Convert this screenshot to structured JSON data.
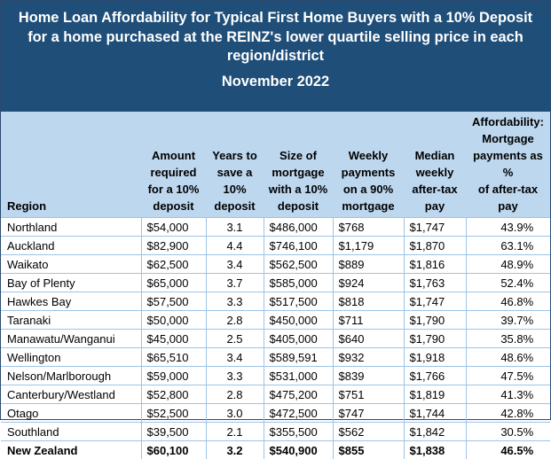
{
  "title": {
    "lines": [
      "Home Loan Affordability for Typical First Home Buyers with a 10% Deposit",
      "for a home purchased at the REINZ's lower quartile selling price in each",
      "region/district"
    ],
    "subtitle": "November 2022"
  },
  "headers": {
    "region": "Region",
    "amount": [
      "Amount",
      "required",
      "for a 10%",
      "deposit"
    ],
    "years": [
      "Years to",
      "save a",
      "10%",
      "deposit"
    ],
    "mortgage": [
      "Size of",
      "mortgage",
      "with a 10%",
      "deposit"
    ],
    "weekly": [
      "Weekly",
      "payments",
      "on a 90%",
      "mortgage"
    ],
    "pay": [
      "Median",
      "weekly",
      "after-tax",
      "pay"
    ],
    "afford": [
      "Affordability:",
      "Mortgage",
      "payments as %",
      "of after-tax pay"
    ]
  },
  "rows": [
    {
      "region": "Northland",
      "amount": "$54,000",
      "years": "3.1",
      "mortgage": "$486,000",
      "weekly": "$768",
      "pay": "$1,747",
      "afford": "43.9%"
    },
    {
      "region": "Auckland",
      "amount": "$82,900",
      "years": "4.4",
      "mortgage": "$746,100",
      "weekly": "$1,179",
      "pay": "$1,870",
      "afford": "63.1%"
    },
    {
      "region": "Waikato",
      "amount": "$62,500",
      "years": "3.4",
      "mortgage": "$562,500",
      "weekly": "$889",
      "pay": "$1,816",
      "afford": "48.9%"
    },
    {
      "region": "Bay of Plenty",
      "amount": "$65,000",
      "years": "3.7",
      "mortgage": "$585,000",
      "weekly": "$924",
      "pay": "$1,763",
      "afford": "52.4%"
    },
    {
      "region": "Hawkes Bay",
      "amount": "$57,500",
      "years": "3.3",
      "mortgage": "$517,500",
      "weekly": "$818",
      "pay": "$1,747",
      "afford": "46.8%"
    },
    {
      "region": "Taranaki",
      "amount": "$50,000",
      "years": "2.8",
      "mortgage": "$450,000",
      "weekly": "$711",
      "pay": "$1,790",
      "afford": "39.7%"
    },
    {
      "region": "Manawatu/Wanganui",
      "amount": "$45,000",
      "years": "2.5",
      "mortgage": "$405,000",
      "weekly": "$640",
      "pay": "$1,790",
      "afford": "35.8%"
    },
    {
      "region": "Wellington",
      "amount": "$65,510",
      "years": "3.4",
      "mortgage": "$589,591",
      "weekly": "$932",
      "pay": "$1,918",
      "afford": "48.6%"
    },
    {
      "region": "Nelson/Marlborough",
      "amount": "$59,000",
      "years": "3.3",
      "mortgage": "$531,000",
      "weekly": "$839",
      "pay": "$1,766",
      "afford": "47.5%"
    },
    {
      "region": "Canterbury/Westland",
      "amount": "$52,800",
      "years": "2.8",
      "mortgage": "$475,200",
      "weekly": "$751",
      "pay": "$1,819",
      "afford": "41.3%"
    },
    {
      "region": "Otago",
      "amount": "$52,500",
      "years": "3.0",
      "mortgage": "$472,500",
      "weekly": "$747",
      "pay": "$1,744",
      "afford": "42.8%"
    },
    {
      "region": "Southland",
      "amount": "$39,500",
      "years": "2.1",
      "mortgage": "$355,500",
      "weekly": "$562",
      "pay": "$1,842",
      "afford": "30.5%"
    },
    {
      "region": "New Zealand",
      "amount": "$60,100",
      "years": "3.2",
      "mortgage": "$540,900",
      "weekly": "$855",
      "pay": "$1,838",
      "afford": "46.5%",
      "total": true
    }
  ],
  "colors": {
    "title_bg": "#1f4e79",
    "header_bg": "#bdd7ee",
    "grid_line": "#9dc3e6"
  }
}
